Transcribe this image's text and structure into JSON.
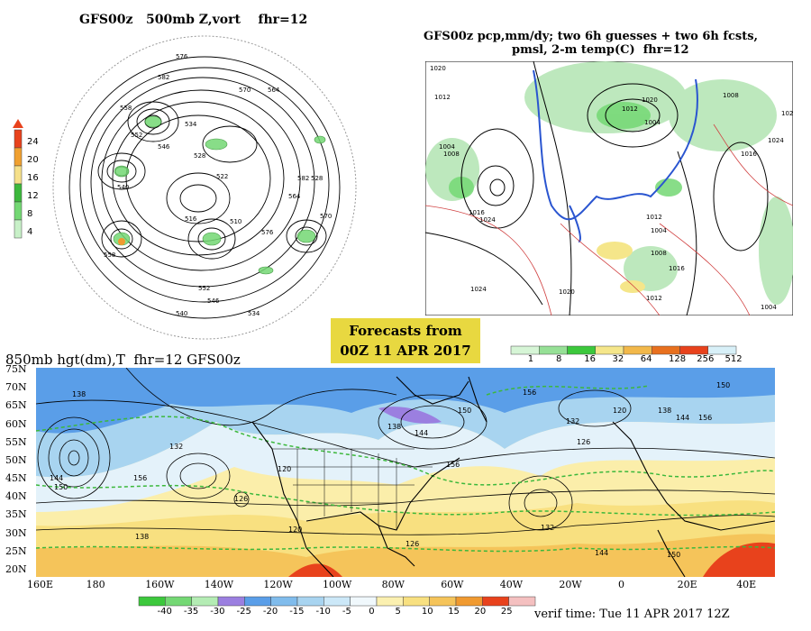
{
  "panels": {
    "p500": {
      "title": "GFS00z   500mb Z,vort    fhr=12"
    },
    "pcp": {
      "title_line1": "GFS00z pcp,mm/dy; two 6h guesses + two 6h fcsts,",
      "title_line2": "pmsl, 2-m temp(C)  fhr=12"
    },
    "p850": {
      "title": "850mb hgt(dm),T  fhr=12 GFS00z"
    }
  },
  "forecast_box": {
    "line1": "Forecasts from",
    "line2": "00Z 11 APR 2017",
    "bg": "#e8d840"
  },
  "verif": "verif time: Tue 11 APR 2017 12Z",
  "vort_scale": {
    "labels": [
      "24",
      "20",
      "16",
      "12",
      "8",
      "4"
    ],
    "colors": [
      "#e8421c",
      "#f0a030",
      "#f5e08a",
      "#3cb83c",
      "#74d874",
      "#c8f0c8"
    ]
  },
  "pcp_scale": {
    "labels": [
      "1",
      "8",
      "16",
      "32",
      "64",
      "128",
      "256",
      "512"
    ],
    "colors": [
      "#d6f5d6",
      "#96e096",
      "#3cc83c",
      "#f5e68a",
      "#f2b84a",
      "#e8701e",
      "#e8421c",
      "#d8f0f8"
    ]
  },
  "temp_scale": {
    "labels": [
      "-40",
      "-35",
      "-30",
      "-25",
      "-20",
      "-15",
      "-10",
      "-5",
      "0",
      "5",
      "10",
      "15",
      "20",
      "25"
    ],
    "colors": [
      "#3cc83c",
      "#74d874",
      "#b4ecb4",
      "#9b7fe0",
      "#5a9ee8",
      "#80bcec",
      "#a8d4f0",
      "#cce8f8",
      "#f0f8fc",
      "#fbf0b0",
      "#f8e080",
      "#f5c45a",
      "#f09a30",
      "#e8421c",
      "#f4c0c0"
    ]
  },
  "lat_labels": [
    "75N",
    "70N",
    "65N",
    "60N",
    "55N",
    "50N",
    "45N",
    "40N",
    "35N",
    "30N",
    "25N",
    "20N"
  ],
  "lon_labels": [
    "160E",
    "180",
    "160W",
    "140W",
    "120W",
    "100W",
    "80W",
    "60W",
    "40W",
    "20W",
    "0",
    "20E",
    "40E"
  ],
  "map500_contours": [
    "576",
    "570",
    "564",
    "582",
    "558",
    "552",
    "546",
    "540",
    "534",
    "528",
    "522",
    "516",
    "510"
  ],
  "map850_contours": [
    "138",
    "144",
    "150",
    "156",
    "132",
    "126",
    "120"
  ],
  "pcp_isobars": [
    "1020",
    "1012",
    "1004",
    "1008",
    "1016",
    "1024"
  ]
}
